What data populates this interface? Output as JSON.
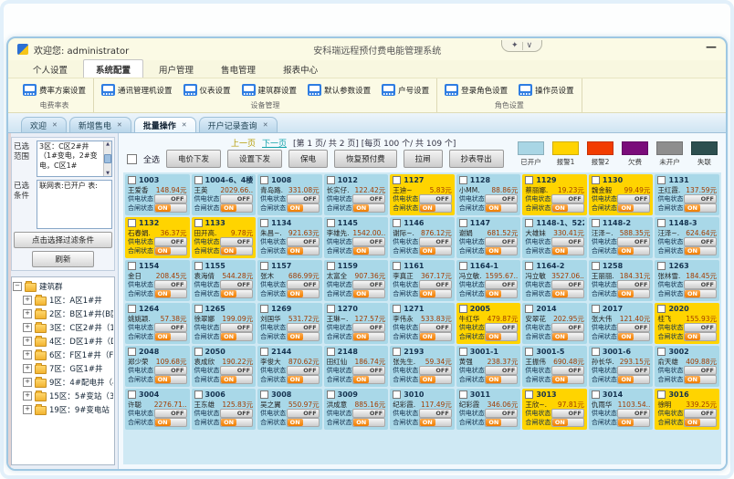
{
  "window": {
    "welcome": "欢迎您: administrator",
    "title": "安科瑞远程预付费电能管理系统",
    "skin_button": "✦",
    "skin_dropdown": "∨",
    "minimize": "—"
  },
  "menu": {
    "items": [
      {
        "label": "个人设置",
        "active": false
      },
      {
        "label": "系统配置",
        "active": true
      },
      {
        "label": "用户管理",
        "active": false
      },
      {
        "label": "售电管理",
        "active": false
      },
      {
        "label": "报表中心",
        "active": false
      }
    ]
  },
  "ribbon": {
    "groups": [
      {
        "label": "电费率表",
        "buttons": [
          "费率方案设置"
        ]
      },
      {
        "label": "设备管理",
        "buttons": [
          "通讯管理机设置",
          "仪表设置",
          "建筑群设置",
          "默认参数设置",
          "户号设置"
        ]
      },
      {
        "label": "角色设置",
        "buttons": [
          "登录角色设置",
          "操作员设置"
        ]
      }
    ]
  },
  "doc_tabs": [
    {
      "label": "欢迎",
      "active": false
    },
    {
      "label": "新增售电",
      "active": false
    },
    {
      "label": "批量操作",
      "active": true
    },
    {
      "label": "开户记录查询",
      "active": false
    }
  ],
  "sidebar": {
    "range_label": "已选 范围",
    "range_value": "3区：C区2#井（1#变电，2#变电，C区1#",
    "cond_label": "已选 条件",
    "cond_value": "联网表:已开户 表:",
    "filter_button": "点击选择过滤条件",
    "refresh_button": "刷新",
    "tree": {
      "root": "建筑群",
      "items": [
        "1区：A区1#井",
        "2区：B区1#井(B区1#",
        "3区：C区2#井（1#变",
        "4区：D区1#井（D区",
        "6区：F区1#井（F区1",
        "7区：G区1#井",
        "9区：4#配电井（4#",
        "15区：5#变站（3#变",
        "19区：9#变电站（2#"
      ]
    }
  },
  "pagination": {
    "prev": "上一页",
    "next": "下一页",
    "info": "[第  1 页/ 共  2 页]  [每页 100 个/ 共  109 个]"
  },
  "actions": {
    "select_all": "全选",
    "buttons": [
      "电价下发",
      "设置下发",
      "保电",
      "恢复预付费",
      "拉闸",
      "抄表导出"
    ]
  },
  "legend": [
    {
      "label": "已开户",
      "color": "#a9d6e5"
    },
    {
      "label": "报警1",
      "color": "#ffd400"
    },
    {
      "label": "报警2",
      "color": "#f23c00"
    },
    {
      "label": "欠费",
      "color": "#7a0c7a"
    },
    {
      "label": "未开户",
      "color": "#8e8e8e"
    },
    {
      "label": "失联",
      "color": "#2d4f4f"
    }
  ],
  "card_labels": {
    "supply": "供电状态",
    "breaker": "合闸状态",
    "on": "ON",
    "off": "OFF"
  },
  "card_colors": {
    "open": "#a9d8e8",
    "alarm": "#ffd400"
  },
  "cards": [
    {
      "id": "1003",
      "name": "王爱香",
      "balance": "148.94元",
      "status": "open"
    },
    {
      "id": "1004-6、4楼一",
      "name": "王英",
      "balance": "2029.66..",
      "status": "open"
    },
    {
      "id": "1008",
      "name": "青岛路.",
      "balance": "331.08元",
      "status": "open"
    },
    {
      "id": "1012",
      "name": "长实仔.",
      "balance": "122.42元",
      "status": "open"
    },
    {
      "id": "1127",
      "name": "王迪~",
      "balance": "5.83元",
      "status": "alarm"
    },
    {
      "id": "1128",
      "name": "小MM.",
      "balance": "88.86元",
      "status": "open"
    },
    {
      "id": "1129",
      "name": "蔡丽娜.",
      "balance": "19.23元",
      "status": "alarm"
    },
    {
      "id": "1130",
      "name": "魏金毅",
      "balance": "99.49元",
      "status": "alarm"
    },
    {
      "id": "1131",
      "name": "王红霞.",
      "balance": "137.59元",
      "status": "open"
    },
    {
      "id": "1132",
      "name": "石春娟.",
      "balance": "36.37元",
      "status": "alarm"
    },
    {
      "id": "1133",
      "name": "田开高.",
      "balance": "9.78元",
      "status": "alarm"
    },
    {
      "id": "1134",
      "name": "朱昌~.",
      "balance": "921.63元",
      "status": "open"
    },
    {
      "id": "1145",
      "name": "李雄先.",
      "balance": "1542.00..",
      "status": "open"
    },
    {
      "id": "1146",
      "name": "谢际~.",
      "balance": "876.12元",
      "status": "open"
    },
    {
      "id": "1147",
      "name": "谢娟",
      "balance": "681.52元",
      "status": "open"
    },
    {
      "id": "1148-1、522",
      "name": "大雄妹",
      "balance": "330.41元",
      "status": "open"
    },
    {
      "id": "1148-2",
      "name": "汪泽~.",
      "balance": "588.35元",
      "status": "open"
    },
    {
      "id": "1148-3",
      "name": "汪泽~.",
      "balance": "624.64元",
      "status": "open"
    },
    {
      "id": "1154",
      "name": "金日",
      "balance": "208.45元",
      "status": "open"
    },
    {
      "id": "1155",
      "name": "袁海倩",
      "balance": "544.28元",
      "status": "open"
    },
    {
      "id": "1157",
      "name": "张木",
      "balance": "686.99元",
      "status": "open"
    },
    {
      "id": "1159",
      "name": "太富全",
      "balance": "907.36元",
      "status": "open"
    },
    {
      "id": "1161",
      "name": "李真正",
      "balance": "367.17元",
      "status": "open"
    },
    {
      "id": "1164-1",
      "name": "冯立敏.",
      "balance": "1595.67..",
      "status": "open"
    },
    {
      "id": "1164-2",
      "name": "冯立敏",
      "balance": "3527.06..",
      "status": "open"
    },
    {
      "id": "1258",
      "name": "王丽丽.",
      "balance": "184.31元",
      "status": "open"
    },
    {
      "id": "1263",
      "name": "张林雪.",
      "balance": "184.45元",
      "status": "open"
    },
    {
      "id": "1264",
      "name": "姚姚颖.",
      "balance": "57.38元",
      "status": "open"
    },
    {
      "id": "1265",
      "name": "徐翠娜",
      "balance": "199.09元",
      "status": "open"
    },
    {
      "id": "1269",
      "name": "刘国华",
      "balance": "531.72元",
      "status": "open"
    },
    {
      "id": "1270",
      "name": "王琳~.",
      "balance": "127.57元",
      "status": "open"
    },
    {
      "id": "1271",
      "name": "李伟永",
      "balance": "533.83元",
      "status": "open"
    },
    {
      "id": "2005",
      "name": "牛红华",
      "balance": "479.87元",
      "status": "alarm"
    },
    {
      "id": "2014",
      "name": "安翠花",
      "balance": "202.95元",
      "status": "open"
    },
    {
      "id": "2017",
      "name": "张大伟",
      "balance": "121.40元",
      "status": "open"
    },
    {
      "id": "2020",
      "name": "桂飞",
      "balance": "155.93元",
      "status": "alarm"
    },
    {
      "id": "2048",
      "name": "郑少荣",
      "balance": "109.68元",
      "status": "open"
    },
    {
      "id": "2050",
      "name": "袁成欣",
      "balance": "190.22元",
      "status": "open"
    },
    {
      "id": "2144",
      "name": "李俊大",
      "balance": "870.62元",
      "status": "open"
    },
    {
      "id": "2148",
      "name": "田红仙",
      "balance": "186.74元",
      "status": "open"
    },
    {
      "id": "2193",
      "name": "张先生.",
      "balance": "59.34元",
      "status": "open"
    },
    {
      "id": "3001-1",
      "name": "黄强",
      "balance": "238.37元",
      "status": "open"
    },
    {
      "id": "3001-5",
      "name": "王振伟",
      "balance": "690.48元",
      "status": "open"
    },
    {
      "id": "3001-6",
      "name": "孙长华.",
      "balance": "293.15元",
      "status": "open"
    },
    {
      "id": "3002",
      "name": "俞天雄",
      "balance": "409.88元",
      "status": "open"
    },
    {
      "id": "3004",
      "name": "许聪",
      "balance": "2276.71..",
      "status": "open"
    },
    {
      "id": "3006",
      "name": "王东雄",
      "balance": "125.83元",
      "status": "open"
    },
    {
      "id": "3008",
      "name": "吴之翼",
      "balance": "550.97元",
      "status": "open"
    },
    {
      "id": "3009",
      "name": "洪成意",
      "balance": "885.16元",
      "status": "open"
    },
    {
      "id": "3010",
      "name": "纪彩霞.",
      "balance": "117.49元",
      "status": "open"
    },
    {
      "id": "3011",
      "name": "纪彩霞",
      "balance": "346.06元",
      "status": "open"
    },
    {
      "id": "3013",
      "name": "王欣~.",
      "balance": "97.81元",
      "status": "alarm"
    },
    {
      "id": "3014",
      "name": "仇雨华",
      "balance": "1103.54..",
      "status": "open"
    },
    {
      "id": "3016",
      "name": "徐明",
      "balance": "339.25元",
      "status": "alarm"
    }
  ]
}
